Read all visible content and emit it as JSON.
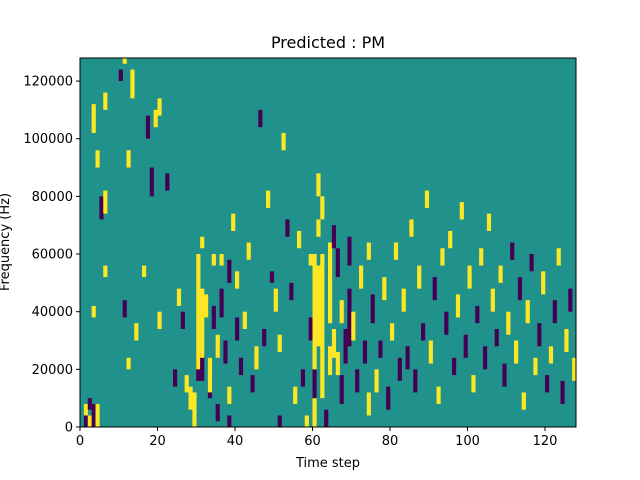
{
  "chart_data": {
    "type": "heatmap",
    "title": "Predicted : PM",
    "xlabel": "Time step",
    "ylabel": "Frequency (Hz)",
    "xlim": [
      0,
      128
    ],
    "ylim": [
      0,
      128000
    ],
    "x_ticks": [
      0,
      20,
      40,
      60,
      80,
      100,
      120
    ],
    "y_ticks": [
      0,
      20000,
      40000,
      60000,
      80000,
      100000,
      120000
    ],
    "x_tick_labels": [
      "0",
      "20",
      "40",
      "60",
      "80",
      "100",
      "120"
    ],
    "y_tick_labels": [
      "0",
      "20000",
      "40000",
      "60000",
      "80000",
      "100000",
      "120000"
    ],
    "n_time_steps": 128,
    "n_freq_bins": 64,
    "freq_bin_hz": 2000,
    "values_legend": {
      "low": -1,
      "mid": 0,
      "high": 1
    },
    "colors": {
      "low": "#440154",
      "mid": "#21918c",
      "high": "#fde725"
    },
    "background_value": 0,
    "cells": [
      [
        1,
        0,
        2,
        -1
      ],
      [
        1,
        2,
        4,
        1
      ],
      [
        2,
        3,
        5,
        -1
      ],
      [
        2,
        0,
        2,
        1
      ],
      [
        3,
        0,
        4,
        -1
      ],
      [
        3,
        19,
        21,
        1
      ],
      [
        3,
        51,
        56,
        1
      ],
      [
        4,
        0,
        4,
        1
      ],
      [
        4,
        45,
        48,
        1
      ],
      [
        5,
        36,
        40,
        -1
      ],
      [
        6,
        37,
        41,
        1
      ],
      [
        6,
        26,
        28,
        1
      ],
      [
        6,
        55,
        58,
        1
      ],
      [
        10,
        60,
        62,
        -1
      ],
      [
        11,
        63,
        64,
        1
      ],
      [
        11,
        19,
        22,
        -1
      ],
      [
        12,
        45,
        48,
        1
      ],
      [
        12,
        10,
        12,
        1
      ],
      [
        13,
        57,
        62,
        1
      ],
      [
        14,
        15,
        18,
        1
      ],
      [
        16,
        26,
        28,
        1
      ],
      [
        17,
        50,
        54,
        -1
      ],
      [
        18,
        40,
        45,
        -1
      ],
      [
        19,
        52,
        55,
        1
      ],
      [
        20,
        54,
        57,
        1
      ],
      [
        20,
        17,
        20,
        1
      ],
      [
        22,
        41,
        44,
        -1
      ],
      [
        24,
        7,
        10,
        -1
      ],
      [
        25,
        21,
        24,
        1
      ],
      [
        26,
        17,
        20,
        -1
      ],
      [
        27,
        6,
        9,
        1
      ],
      [
        28,
        3,
        7,
        1
      ],
      [
        29,
        0,
        6,
        1
      ],
      [
        30,
        8,
        12,
        -1
      ],
      [
        30,
        10,
        17,
        1
      ],
      [
        30,
        17,
        30,
        1
      ],
      [
        31,
        31,
        33,
        1
      ],
      [
        31,
        8,
        13,
        -1
      ],
      [
        31,
        12,
        24,
        1
      ],
      [
        32,
        19,
        23,
        1
      ],
      [
        33,
        5,
        8,
        -1
      ],
      [
        33,
        6,
        12,
        1
      ],
      [
        34,
        17,
        21,
        -1
      ],
      [
        34,
        28,
        30,
        1
      ],
      [
        35,
        1,
        4,
        -1
      ],
      [
        35,
        12,
        16,
        1
      ],
      [
        36,
        19,
        24,
        -1
      ],
      [
        36,
        28,
        30,
        1
      ],
      [
        37,
        11,
        15,
        -1
      ],
      [
        38,
        0,
        2,
        -1
      ],
      [
        38,
        4,
        7,
        1
      ],
      [
        38,
        25,
        29,
        -1
      ],
      [
        39,
        34,
        37,
        1
      ],
      [
        40,
        15,
        19,
        -1
      ],
      [
        40,
        24,
        27,
        1
      ],
      [
        41,
        9,
        12,
        -1
      ],
      [
        42,
        17,
        20,
        1
      ],
      [
        43,
        29,
        32,
        1
      ],
      [
        44,
        6,
        9,
        -1
      ],
      [
        45,
        10,
        14,
        1
      ],
      [
        46,
        52,
        55,
        -1
      ],
      [
        47,
        14,
        17,
        -1
      ],
      [
        48,
        38,
        41,
        1
      ],
      [
        49,
        25,
        27,
        -1
      ],
      [
        50,
        20,
        24,
        1
      ],
      [
        51,
        13,
        16,
        1
      ],
      [
        51,
        0,
        2,
        -1
      ],
      [
        52,
        48,
        51,
        1
      ],
      [
        53,
        33,
        36,
        -1
      ],
      [
        54,
        22,
        25,
        -1
      ],
      [
        55,
        4,
        7,
        1
      ],
      [
        56,
        31,
        34,
        1
      ],
      [
        57,
        7,
        10,
        -1
      ],
      [
        58,
        0,
        2,
        1
      ],
      [
        59,
        15,
        19,
        -1
      ],
      [
        59,
        28,
        30,
        1
      ],
      [
        60,
        0,
        5,
        1
      ],
      [
        60,
        5,
        10,
        -1
      ],
      [
        60,
        10,
        30,
        1
      ],
      [
        61,
        14,
        28,
        1
      ],
      [
        61,
        33,
        36,
        1
      ],
      [
        61,
        40,
        44,
        1
      ],
      [
        62,
        5,
        30,
        1
      ],
      [
        62,
        36,
        40,
        1
      ],
      [
        63,
        0,
        3,
        -1
      ],
      [
        64,
        9,
        14,
        1
      ],
      [
        64,
        18,
        32,
        1
      ],
      [
        65,
        12,
        17,
        1
      ],
      [
        65,
        31,
        35,
        -1
      ],
      [
        66,
        9,
        13,
        1
      ],
      [
        66,
        26,
        31,
        -1
      ],
      [
        67,
        4,
        9,
        -1
      ],
      [
        67,
        18,
        22,
        1
      ],
      [
        68,
        11,
        17,
        -1
      ],
      [
        69,
        14,
        24,
        -1
      ],
      [
        69,
        28,
        33,
        -1
      ],
      [
        70,
        15,
        20,
        1
      ],
      [
        71,
        6,
        10,
        -1
      ],
      [
        72,
        24,
        28,
        1
      ],
      [
        73,
        11,
        15,
        -1
      ],
      [
        74,
        2,
        6,
        1
      ],
      [
        74,
        29,
        32,
        1
      ],
      [
        75,
        18,
        23,
        -1
      ],
      [
        76,
        6,
        10,
        1
      ],
      [
        77,
        12,
        15,
        -1
      ],
      [
        78,
        22,
        26,
        1
      ],
      [
        79,
        3,
        7,
        -1
      ],
      [
        80,
        15,
        18,
        1
      ],
      [
        81,
        29,
        32,
        1
      ],
      [
        82,
        8,
        12,
        -1
      ],
      [
        83,
        20,
        24,
        1
      ],
      [
        84,
        10,
        14,
        -1
      ],
      [
        85,
        33,
        36,
        1
      ],
      [
        86,
        6,
        10,
        -1
      ],
      [
        87,
        24,
        28,
        1
      ],
      [
        88,
        15,
        18,
        -1
      ],
      [
        89,
        38,
        41,
        1
      ],
      [
        90,
        11,
        15,
        1
      ],
      [
        91,
        22,
        26,
        -1
      ],
      [
        92,
        4,
        7,
        1
      ],
      [
        93,
        28,
        31,
        1
      ],
      [
        94,
        16,
        20,
        -1
      ],
      [
        95,
        31,
        34,
        1
      ],
      [
        96,
        9,
        12,
        -1
      ],
      [
        97,
        19,
        23,
        1
      ],
      [
        98,
        36,
        39,
        1
      ],
      [
        99,
        12,
        16,
        -1
      ],
      [
        100,
        24,
        28,
        1
      ],
      [
        101,
        6,
        9,
        1
      ],
      [
        102,
        18,
        21,
        -1
      ],
      [
        103,
        28,
        31,
        1
      ],
      [
        104,
        10,
        14,
        -1
      ],
      [
        105,
        34,
        37,
        1
      ],
      [
        106,
        20,
        24,
        1
      ],
      [
        107,
        14,
        17,
        -1
      ],
      [
        108,
        25,
        28,
        1
      ],
      [
        109,
        7,
        11,
        -1
      ],
      [
        110,
        16,
        20,
        1
      ],
      [
        111,
        29,
        32,
        -1
      ],
      [
        112,
        11,
        15,
        1
      ],
      [
        113,
        22,
        26,
        -1
      ],
      [
        114,
        3,
        6,
        1
      ],
      [
        115,
        18,
        22,
        1
      ],
      [
        116,
        27,
        30,
        -1
      ],
      [
        117,
        9,
        12,
        1
      ],
      [
        118,
        14,
        18,
        -1
      ],
      [
        119,
        23,
        27,
        1
      ],
      [
        120,
        6,
        9,
        -1
      ],
      [
        121,
        11,
        14,
        1
      ],
      [
        122,
        18,
        22,
        -1
      ],
      [
        123,
        28,
        31,
        1
      ],
      [
        124,
        4,
        8,
        -1
      ],
      [
        125,
        13,
        17,
        1
      ],
      [
        126,
        20,
        24,
        -1
      ],
      [
        127,
        8,
        12,
        1
      ]
    ]
  }
}
